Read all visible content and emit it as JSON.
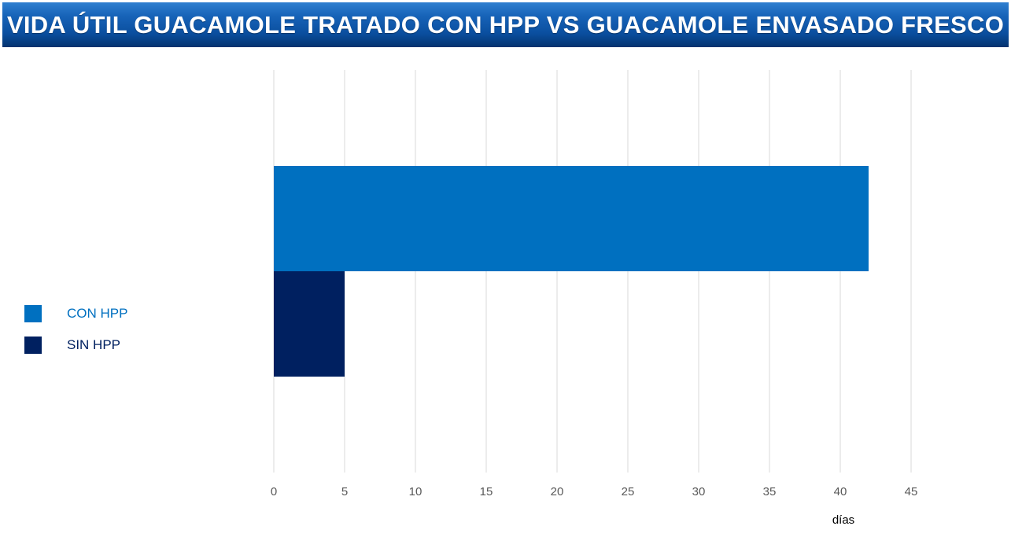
{
  "title": "VIDA ÚTIL GUACAMOLE TRATADO CON HPP VS GUACAMOLE ENVASADO FRESCO",
  "colors": {
    "con_hpp": "#0070c0",
    "sin_hpp": "#002060",
    "gridline": "#d9d9d9"
  },
  "legend": {
    "items": [
      {
        "label": "CON HPP",
        "color": "#0070c0",
        "text_color": "#0070c0"
      },
      {
        "label": "SIN HPP",
        "color": "#002060",
        "text_color": "#002060"
      }
    ]
  },
  "chart_data": {
    "type": "bar",
    "orientation": "horizontal",
    "title": "VIDA ÚTIL GUACAMOLE TRATADO CON HPP VS GUACAMOLE ENVASADO FRESCO",
    "xlabel": "días",
    "ylabel": "",
    "xlim": [
      0,
      45
    ],
    "xticks": [
      0,
      5,
      10,
      15,
      20,
      25,
      30,
      35,
      40,
      45
    ],
    "grid": "vertical",
    "legend_position": "left",
    "series": [
      {
        "name": "CON HPP",
        "values": [
          42
        ],
        "color": "#0070c0"
      },
      {
        "name": "SIN HPP",
        "values": [
          5
        ],
        "color": "#002060"
      }
    ]
  }
}
